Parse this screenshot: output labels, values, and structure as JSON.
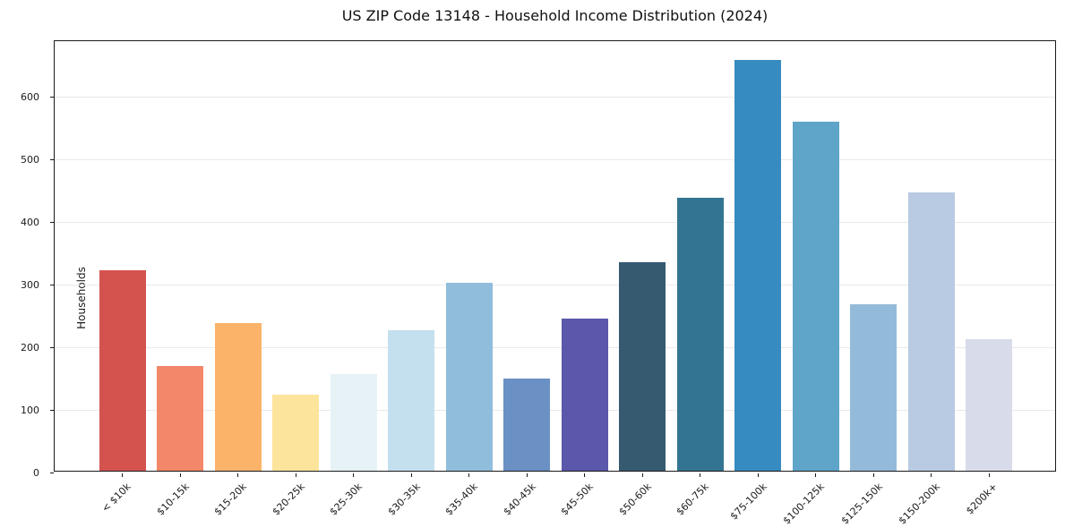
{
  "chart_data": {
    "type": "bar",
    "title": "US ZIP Code 13148 - Household Income Distribution (2024)",
    "xlabel": "",
    "ylabel": "Households",
    "ylim": [
      0,
      690
    ],
    "yticks": [
      0,
      100,
      200,
      300,
      400,
      500,
      600
    ],
    "grid": "horizontal",
    "legend": "none",
    "categories": [
      "< $10k",
      "$10-15k",
      "$15-20k",
      "$20-25k",
      "$25-30k",
      "$30-35k",
      "$35-40k",
      "$40-45k",
      "$45-50k",
      "$50-60k",
      "$60-75k",
      "$75-100k",
      "$100-125k",
      "$125-150k",
      "$150-200k",
      "$200k+"
    ],
    "values": [
      320,
      167,
      236,
      121,
      155,
      225,
      300,
      148,
      244,
      334,
      436,
      657,
      558,
      267,
      445,
      210
    ],
    "bar_colors": [
      "#d4534f",
      "#f2876a",
      "#fbb36a",
      "#fde49c",
      "#e7f2f6",
      "#c4e0ee",
      "#90bddc",
      "#6a90c4",
      "#5b57aa",
      "#365a70",
      "#337492",
      "#368bc0",
      "#5fa5c9",
      "#94bad9",
      "#b9cae3",
      "#d8dbe9"
    ],
    "grid_color": "#e9e9e9",
    "axis_color": "#1a1a1a"
  }
}
